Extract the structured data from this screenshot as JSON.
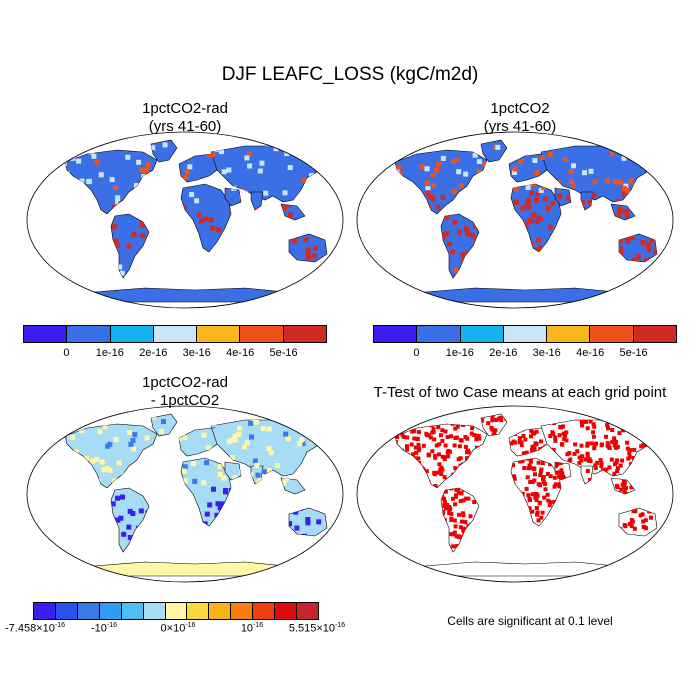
{
  "title": "DJF LEAFC_LOSS (kgC/m2d)",
  "panels": [
    {
      "title1": "1pctCO2-rad",
      "title2": "(yrs 41-60)"
    },
    {
      "title1": "1pctCO2",
      "title2": "(yrs 41-60)"
    },
    {
      "title1": "1pctCO2-rad",
      "title2": "- 1pctCO2"
    },
    {
      "title1": "T-Test of two Case means at each grid point",
      "title2": ""
    }
  ],
  "colorbar_top": {
    "colors": [
      "#3a1ff0",
      "#3b6fe6",
      "#17b2ef",
      "#c8e6f5",
      "#f9b61d",
      "#f0521d",
      "#d02a25"
    ],
    "labels": [
      "0",
      "1e-16",
      "2e-16",
      "3e-16",
      "4e-16",
      "5e-16"
    ]
  },
  "colorbar_diff": {
    "colors": [
      "#3a1ff0",
      "#2b4ff0",
      "#3a7ae8",
      "#2f9df2",
      "#4dbff5",
      "#a6dcf5",
      "#fff6a6",
      "#fcd93a",
      "#f8b31b",
      "#f47d14",
      "#ee3f10",
      "#dd0b0b",
      "#c8252a"
    ],
    "labels": {
      "l1": "-7.458×10",
      "l1e": "-16",
      "l2": "-10",
      "l2e": "-16",
      "l3": "0×10",
      "l3e": "-16",
      "l4": "10",
      "l4e": "-16",
      "l5": "5.515×10",
      "l5e": "-16"
    }
  },
  "note": "Cells are significant at 0.1 level",
  "map_colors": {
    "ocean": "#ffffff",
    "base_low": "#3b6fe6",
    "high": "#d02a25",
    "mid": "#f0521d",
    "light": "#c8e6f5",
    "diff_base": "#a6dcf5",
    "diff_low": "#3a1ff0",
    "diff_yellow": "#fff6a6",
    "sig": "#ee0000"
  }
}
